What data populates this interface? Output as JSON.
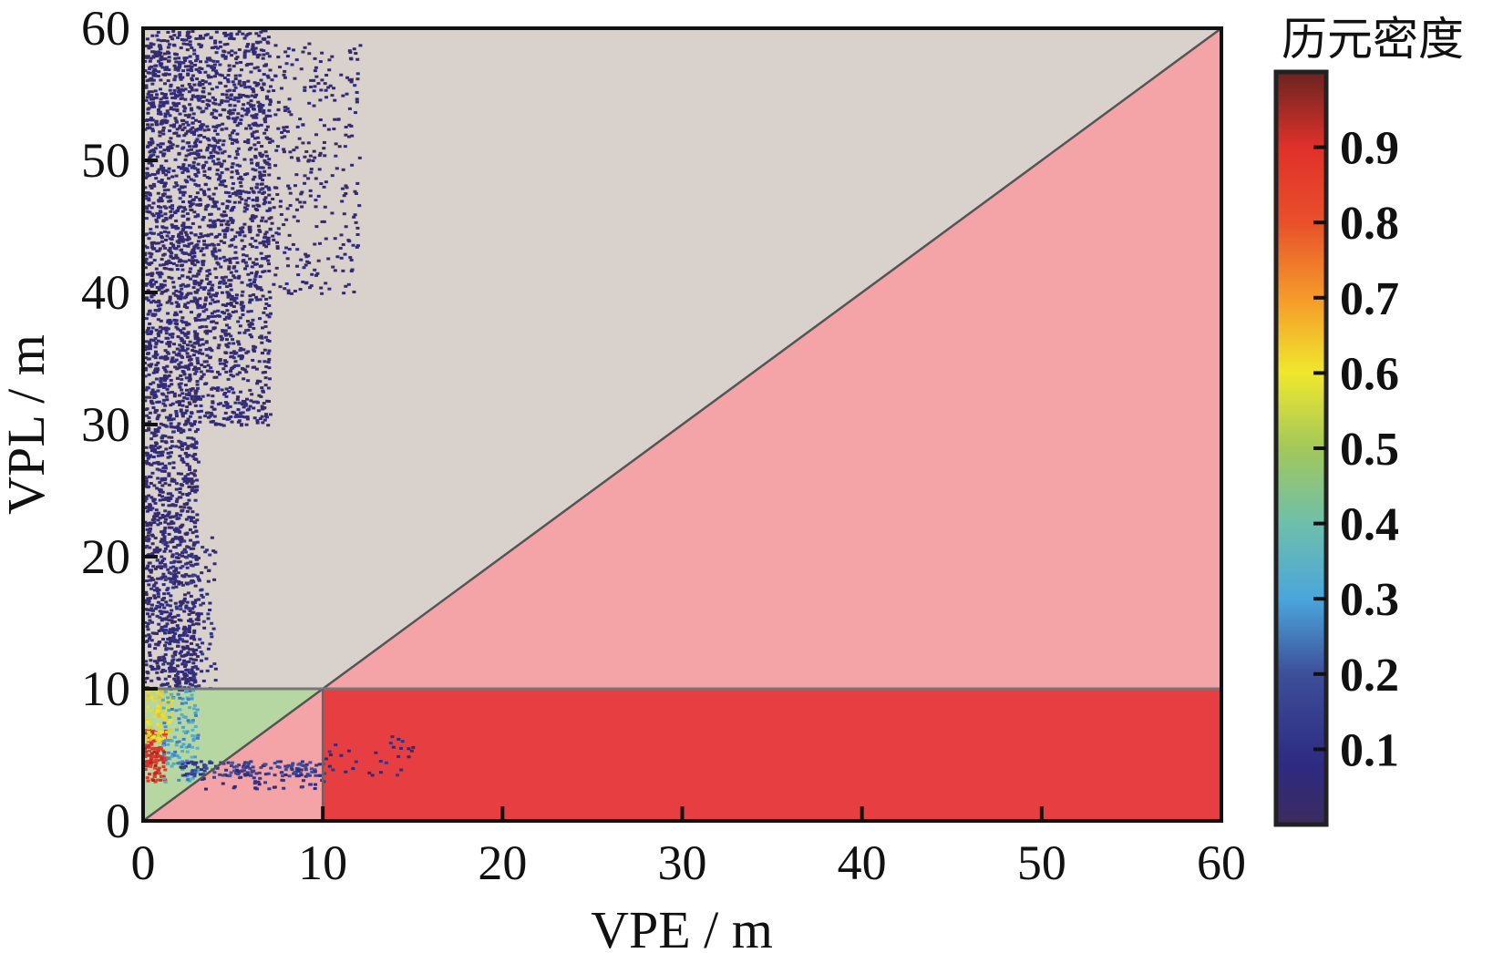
{
  "chart_data": {
    "type": "scatter",
    "subtype": "stanford-diagram",
    "xlabel": "VPE / m",
    "ylabel": "VPL / m",
    "xlim": [
      0,
      60
    ],
    "ylim": [
      0,
      60
    ],
    "xticks": [
      "0",
      "10",
      "20",
      "30",
      "40",
      "50",
      "60"
    ],
    "yticks": [
      "0",
      "10",
      "20",
      "30",
      "40",
      "50",
      "60"
    ],
    "alert_limit": 10,
    "regions": [
      {
        "name": "normal-operation",
        "color": "#b6d7a1",
        "polygon": [
          [
            0,
            0
          ],
          [
            0,
            10
          ],
          [
            10,
            10
          ]
        ]
      },
      {
        "name": "system-unavailable",
        "color": "#d9d1cc",
        "polygon": [
          [
            0,
            10
          ],
          [
            0,
            60
          ],
          [
            60,
            60
          ],
          [
            10,
            10
          ]
        ]
      },
      {
        "name": "misleading-information",
        "color": "#f4a4a6",
        "polygon": [
          [
            0,
            0
          ],
          [
            10,
            10
          ],
          [
            60,
            60
          ],
          [
            60,
            10
          ],
          [
            10,
            10
          ],
          [
            10,
            0
          ]
        ]
      },
      {
        "name": "hazardous-misleading-information",
        "color": "#e73f41",
        "polygon": [
          [
            10,
            0
          ],
          [
            10,
            10
          ],
          [
            60,
            10
          ],
          [
            60,
            0
          ]
        ]
      }
    ],
    "colorbar": {
      "title": "历元密度",
      "range": [
        0,
        1
      ],
      "ticks": [
        "0.1",
        "0.2",
        "0.3",
        "0.4",
        "0.5",
        "0.6",
        "0.7",
        "0.8",
        "0.9"
      ],
      "tick_values": [
        0.1,
        0.2,
        0.3,
        0.4,
        0.5,
        0.6,
        0.7,
        0.8,
        0.9
      ],
      "stops": [
        {
          "v": 0.0,
          "c": "#3b2b5e"
        },
        {
          "v": 0.08,
          "c": "#2e2a82"
        },
        {
          "v": 0.2,
          "c": "#3d4f99"
        },
        {
          "v": 0.3,
          "c": "#4aa6dc"
        },
        {
          "v": 0.4,
          "c": "#6ebfab"
        },
        {
          "v": 0.5,
          "c": "#a3c85a"
        },
        {
          "v": 0.6,
          "c": "#f0e72d"
        },
        {
          "v": 0.7,
          "c": "#f59a2a"
        },
        {
          "v": 0.8,
          "c": "#e8502a"
        },
        {
          "v": 0.9,
          "c": "#e0302a"
        },
        {
          "v": 1.0,
          "c": "#6a2420"
        }
      ]
    },
    "point_clouds": [
      {
        "vpe": [
          0,
          3
        ],
        "vpl": [
          10,
          60
        ],
        "density": 0.05,
        "count": 2200
      },
      {
        "vpe": [
          3,
          7
        ],
        "vpl": [
          30,
          60
        ],
        "density": 0.05,
        "count": 1200
      },
      {
        "vpe": [
          6,
          12
        ],
        "vpl": [
          40,
          59
        ],
        "density": 0.04,
        "count": 350
      },
      {
        "vpe": [
          1,
          4
        ],
        "vpl": [
          10,
          22
        ],
        "density": 0.1,
        "count": 120
      },
      {
        "vpe": [
          0,
          1.2
        ],
        "vpl": [
          3,
          7
        ],
        "density": 0.9,
        "count": 140
      },
      {
        "vpe": [
          0,
          1.5
        ],
        "vpl": [
          6,
          10
        ],
        "density": 0.6,
        "count": 120
      },
      {
        "vpe": [
          1,
          3
        ],
        "vpl": [
          3,
          10
        ],
        "density": 0.3,
        "count": 120
      },
      {
        "vpe": [
          2,
          10
        ],
        "vpl": [
          3.5,
          4.6
        ],
        "density": 0.15,
        "count": 140
      },
      {
        "vpe": [
          3,
          10
        ],
        "vpl": [
          2.5,
          4
        ],
        "density": 0.1,
        "count": 50
      },
      {
        "vpe": [
          10,
          15
        ],
        "vpl": [
          3.5,
          6.5
        ],
        "density": 0.08,
        "count": 30
      }
    ]
  }
}
